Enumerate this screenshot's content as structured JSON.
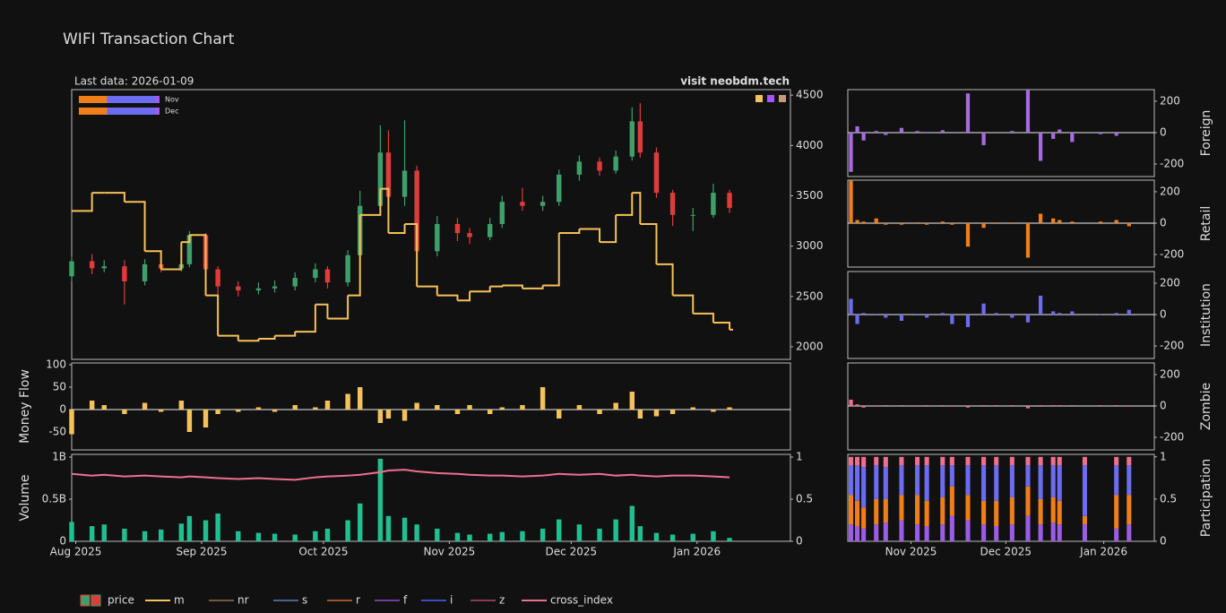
{
  "title": "WIFI Transaction Chart",
  "subtitle": "Last data: 2026-01-09",
  "annotation": "visit neobdm.tech",
  "legend": [
    {
      "name": "price"
    },
    {
      "name": "m",
      "color": "#f5c15a"
    },
    {
      "name": "nr",
      "color": "#6b5a40"
    },
    {
      "name": "s",
      "color": "#4a6090"
    },
    {
      "name": "r",
      "color": "#a0522d"
    },
    {
      "name": "f",
      "color": "#6a3fa0"
    },
    {
      "name": "i",
      "color": "#3b4cc0"
    },
    {
      "name": "z",
      "color": "#8a3a50"
    },
    {
      "name": "cross_index",
      "color": "#ef6f8f"
    }
  ],
  "chart_data": [
    {
      "type": "candlestick",
      "x": [
        "2025-07-31",
        "2025-08-05",
        "2025-08-08",
        "2025-08-13",
        "2025-08-18",
        "2025-08-22",
        "2025-08-27",
        "2025-08-29",
        "2025-09-02",
        "2025-09-05",
        "2025-09-10",
        "2025-09-15",
        "2025-09-19",
        "2025-09-24",
        "2025-09-29",
        "2025-10-02",
        "2025-10-07",
        "2025-10-10",
        "2025-10-15",
        "2025-10-17",
        "2025-10-21",
        "2025-10-24",
        "2025-10-29",
        "2025-11-03",
        "2025-11-06",
        "2025-11-11",
        "2025-11-14",
        "2025-11-19",
        "2025-11-24",
        "2025-11-28",
        "2025-12-03",
        "2025-12-08",
        "2025-12-12",
        "2025-12-16",
        "2025-12-18",
        "2025-12-22",
        "2025-12-26",
        "2025-12-31",
        "2026-01-05",
        "2026-01-09"
      ],
      "open": [
        2700,
        2850,
        2780,
        2800,
        2650,
        2820,
        2780,
        2820,
        3110,
        2770,
        2600,
        2560,
        2580,
        2600,
        2685,
        2770,
        2640,
        2910,
        3400,
        3930,
        3490,
        3750,
        2950,
        3220,
        3130,
        3090,
        3220,
        3440,
        3400,
        3440,
        3710,
        3840,
        3750,
        3890,
        4240,
        3930,
        3530,
        3310,
        3310,
        3530
      ],
      "high": [
        2900,
        2920,
        2860,
        2860,
        2870,
        2880,
        2880,
        3150,
        3130,
        2800,
        2650,
        2640,
        2660,
        2740,
        2830,
        2800,
        2960,
        3550,
        4200,
        4150,
        4250,
        3800,
        3300,
        3280,
        3180,
        3280,
        3500,
        3580,
        3500,
        3760,
        3900,
        3880,
        3950,
        4380,
        4420,
        3980,
        3560,
        3380,
        3620,
        3560
      ],
      "low": [
        2650,
        2720,
        2740,
        2420,
        2610,
        2740,
        2750,
        2790,
        2700,
        2520,
        2500,
        2520,
        2540,
        2560,
        2640,
        2580,
        2600,
        2880,
        3350,
        3300,
        3400,
        2880,
        2900,
        3050,
        3020,
        3060,
        3180,
        3350,
        3350,
        3400,
        3650,
        3700,
        3720,
        3850,
        3880,
        3480,
        3200,
        3150,
        3280,
        3330
      ],
      "close": [
        2850,
        2780,
        2800,
        2650,
        2820,
        2780,
        2820,
        3110,
        2770,
        2600,
        2560,
        2580,
        2600,
        2685,
        2770,
        2640,
        2910,
        3400,
        3930,
        3490,
        3750,
        2950,
        3220,
        3130,
        3090,
        3220,
        3440,
        3400,
        3440,
        3710,
        3840,
        3750,
        3890,
        4240,
        3930,
        3530,
        3310,
        3310,
        3530,
        3380
      ],
      "increasing_color": "#3f9f6a",
      "decreasing_color": "#e03b3b",
      "series": [
        {
          "color": "#f5c15a",
          "values": [
            3350,
            3530,
            3530,
            3440,
            2950,
            2770,
            3040,
            3110,
            2510,
            2110,
            2060,
            2080,
            2110,
            2150,
            2420,
            2280,
            2510,
            3310,
            3570,
            3130,
            3220,
            2600,
            2510,
            2460,
            2550,
            2600,
            2610,
            2580,
            2610,
            3130,
            3170,
            3040,
            3310,
            3530,
            3220,
            2820,
            2510,
            2330,
            2240,
            2170
          ]
        }
      ],
      "mini": {
        "categories": [
          "Nov",
          "Dec"
        ],
        "series": [
          {
            "color": "#f07f1a",
            "values": [
              0.35,
              0.35
            ]
          },
          {
            "color": "#6b6cf0",
            "values": [
              0.6,
              0.6
            ]
          },
          {
            "color": "#a855f7",
            "values": [
              0.05,
              0.05
            ]
          }
        ]
      },
      "xlim": [
        "2025-07-31",
        "2026-01-24"
      ],
      "ylim": [
        1875,
        4555
      ],
      "yticks": [
        2000,
        2500,
        3000,
        3500,
        4000,
        4500
      ]
    },
    {
      "type": "bar",
      "y_title": "Money Flow",
      "color": "#f5c15a",
      "x": [
        "2025-07-31",
        "2025-08-05",
        "2025-08-08",
        "2025-08-13",
        "2025-08-18",
        "2025-08-22",
        "2025-08-27",
        "2025-08-29",
        "2025-09-02",
        "2025-09-05",
        "2025-09-10",
        "2025-09-15",
        "2025-09-19",
        "2025-09-24",
        "2025-09-29",
        "2025-10-02",
        "2025-10-07",
        "2025-10-10",
        "2025-10-15",
        "2025-10-17",
        "2025-10-21",
        "2025-10-24",
        "2025-10-29",
        "2025-11-03",
        "2025-11-06",
        "2025-11-11",
        "2025-11-14",
        "2025-11-19",
        "2025-11-24",
        "2025-11-28",
        "2025-12-03",
        "2025-12-08",
        "2025-12-12",
        "2025-12-16",
        "2025-12-18",
        "2025-12-22",
        "2025-12-26",
        "2025-12-31",
        "2026-01-05",
        "2026-01-09"
      ],
      "values": [
        -55,
        20,
        10,
        -10,
        15,
        -5,
        20,
        -50,
        -40,
        -10,
        -5,
        5,
        -5,
        10,
        5,
        20,
        35,
        50,
        -30,
        -20,
        -25,
        15,
        10,
        -10,
        10,
        -10,
        5,
        10,
        50,
        -20,
        10,
        -10,
        15,
        40,
        -20,
        -15,
        -10,
        5,
        -5,
        5
      ],
      "xlim": [
        "2025-07-31",
        "2026-01-24"
      ],
      "ylim": [
        -90,
        104
      ],
      "yticks": [
        -50,
        0,
        50,
        100
      ]
    },
    {
      "type": "combo",
      "y_title": "Volume",
      "x": [
        "2025-07-31",
        "2025-08-05",
        "2025-08-08",
        "2025-08-13",
        "2025-08-18",
        "2025-08-22",
        "2025-08-27",
        "2025-08-29",
        "2025-09-02",
        "2025-09-05",
        "2025-09-10",
        "2025-09-15",
        "2025-09-19",
        "2025-09-24",
        "2025-09-29",
        "2025-10-02",
        "2025-10-07",
        "2025-10-10",
        "2025-10-15",
        "2025-10-17",
        "2025-10-21",
        "2025-10-24",
        "2025-10-29",
        "2025-11-03",
        "2025-11-06",
        "2025-11-11",
        "2025-11-14",
        "2025-11-19",
        "2025-11-24",
        "2025-11-28",
        "2025-12-03",
        "2025-12-08",
        "2025-12-12",
        "2025-12-16",
        "2025-12-18",
        "2025-12-22",
        "2025-12-26",
        "2025-12-31",
        "2026-01-05",
        "2026-01-09"
      ],
      "series": [
        {
          "color": "#1fbf8f",
          "values": [
            230000000,
            180000000,
            200000000,
            150000000,
            120000000,
            140000000,
            210000000,
            300000000,
            250000000,
            330000000,
            120000000,
            100000000,
            90000000,
            80000000,
            120000000,
            150000000,
            250000000,
            450000000,
            980000000,
            300000000,
            280000000,
            200000000,
            150000000,
            100000000,
            80000000,
            90000000,
            110000000,
            120000000,
            150000000,
            260000000,
            200000000,
            150000000,
            260000000,
            420000000,
            180000000,
            100000000,
            80000000,
            90000000,
            120000000,
            40000000
          ]
        },
        {
          "color": "#ef6f8f",
          "axis": "y2",
          "values": [
            0.8,
            0.78,
            0.79,
            0.77,
            0.78,
            0.77,
            0.76,
            0.77,
            0.76,
            0.75,
            0.74,
            0.75,
            0.74,
            0.73,
            0.76,
            0.77,
            0.78,
            0.79,
            0.82,
            0.84,
            0.85,
            0.83,
            0.81,
            0.8,
            0.79,
            0.78,
            0.78,
            0.77,
            0.78,
            0.8,
            0.79,
            0.8,
            0.78,
            0.79,
            0.78,
            0.77,
            0.78,
            0.78,
            0.77,
            0.76
          ]
        }
      ],
      "xlim": [
        "2025-07-31",
        "2026-01-24"
      ],
      "xticks": [
        {
          "value": "2025-08-01",
          "label": "Aug 2025"
        },
        {
          "value": "2025-09-01",
          "label": "Sep 2025"
        },
        {
          "value": "2025-10-01",
          "label": "Oct 2025"
        },
        {
          "value": "2025-11-01",
          "label": "Nov 2025"
        },
        {
          "value": "2025-12-01",
          "label": "Dec 2025"
        },
        {
          "value": "2026-01-01",
          "label": "Jan 2026"
        }
      ],
      "ylim": [
        0,
        1032000000
      ],
      "yticks": [
        0,
        {
          "value": 500000000,
          "label": "0.5B"
        },
        {
          "value": 1000000000,
          "label": "1B"
        }
      ],
      "y2lim": [
        0,
        1.032
      ],
      "y2ticks": [
        0,
        0.5,
        1
      ]
    },
    {
      "type": "bar",
      "y_title": "Foreign",
      "color": "#a66be0",
      "x": [
        "2025-10-13",
        "2025-10-15",
        "2025-10-17",
        "2025-10-21",
        "2025-10-24",
        "2025-10-29",
        "2025-11-03",
        "2025-11-06",
        "2025-11-11",
        "2025-11-14",
        "2025-11-19",
        "2025-11-24",
        "2025-11-28",
        "2025-12-03",
        "2025-12-08",
        "2025-12-12",
        "2025-12-16",
        "2025-12-18",
        "2025-12-22",
        "2025-12-26",
        "2025-12-31",
        "2026-01-05",
        "2026-01-09"
      ],
      "values": [
        -250,
        40,
        -50,
        10,
        -15,
        30,
        10,
        -5,
        15,
        5,
        250,
        -80,
        5,
        10,
        270,
        -180,
        -40,
        20,
        -60,
        0,
        -10,
        -20,
        0
      ],
      "xlim": [
        "2025-10-12",
        "2026-01-17"
      ],
      "ylim": [
        -280,
        274
      ],
      "yticks": [
        -200,
        0,
        200
      ]
    },
    {
      "type": "bar",
      "y_title": "Retail",
      "color": "#f07f1a",
      "x": [
        "2025-10-13",
        "2025-10-15",
        "2025-10-17",
        "2025-10-21",
        "2025-10-24",
        "2025-10-29",
        "2025-11-03",
        "2025-11-06",
        "2025-11-11",
        "2025-11-14",
        "2025-11-19",
        "2025-11-24",
        "2025-11-28",
        "2025-12-03",
        "2025-12-08",
        "2025-12-12",
        "2025-12-16",
        "2025-12-18",
        "2025-12-22",
        "2025-12-26",
        "2025-12-31",
        "2026-01-05",
        "2026-01-09"
      ],
      "values": [
        270,
        20,
        10,
        30,
        -10,
        -10,
        5,
        -10,
        10,
        -10,
        -150,
        -30,
        -5,
        -5,
        -220,
        60,
        30,
        20,
        10,
        0,
        10,
        20,
        -20
      ],
      "xlim": [
        "2025-10-12",
        "2026-01-17"
      ],
      "ylim": [
        -280,
        274
      ],
      "yticks": [
        -200,
        0,
        200
      ]
    },
    {
      "type": "bar",
      "y_title": "Institution",
      "color": "#6b6cf0",
      "x": [
        "2025-10-13",
        "2025-10-15",
        "2025-10-17",
        "2025-10-21",
        "2025-10-24",
        "2025-10-29",
        "2025-11-03",
        "2025-11-06",
        "2025-11-11",
        "2025-11-14",
        "2025-11-19",
        "2025-11-24",
        "2025-11-28",
        "2025-12-03",
        "2025-12-08",
        "2025-12-12",
        "2025-12-16",
        "2025-12-18",
        "2025-12-22",
        "2025-12-26",
        "2025-12-31",
        "2026-01-05",
        "2026-01-09"
      ],
      "values": [
        100,
        -60,
        10,
        5,
        -20,
        -40,
        5,
        -20,
        10,
        -60,
        -80,
        70,
        10,
        -20,
        -50,
        120,
        20,
        10,
        20,
        0,
        -5,
        10,
        30
      ],
      "xlim": [
        "2025-10-12",
        "2026-01-17"
      ],
      "ylim": [
        -280,
        274
      ],
      "yticks": [
        -200,
        0,
        200
      ]
    },
    {
      "type": "bar",
      "y_title": "Zombie",
      "color": "#ef6f8f",
      "x": [
        "2025-10-13",
        "2025-10-15",
        "2025-10-17",
        "2025-10-21",
        "2025-10-24",
        "2025-10-29",
        "2025-11-03",
        "2025-11-06",
        "2025-11-11",
        "2025-11-14",
        "2025-11-19",
        "2025-11-24",
        "2025-11-28",
        "2025-12-03",
        "2025-12-08",
        "2025-12-12",
        "2025-12-16",
        "2025-12-18",
        "2025-12-22",
        "2025-12-26",
        "2025-12-31",
        "2026-01-05",
        "2026-01-09"
      ],
      "values": [
        40,
        10,
        -10,
        -5,
        5,
        5,
        -5,
        5,
        5,
        -5,
        -10,
        5,
        5,
        5,
        -15,
        5,
        5,
        5,
        5,
        0,
        5,
        5,
        -5
      ],
      "xlim": [
        "2025-10-12",
        "2026-01-17"
      ],
      "ylim": [
        -280,
        274
      ],
      "yticks": [
        -200,
        0,
        200
      ]
    },
    {
      "type": "stacked_bar",
      "y_title": "Participation",
      "x": [
        "2025-10-13",
        "2025-10-15",
        "2025-10-17",
        "2025-10-21",
        "2025-10-24",
        "2025-10-29",
        "2025-11-03",
        "2025-11-06",
        "2025-11-11",
        "2025-11-14",
        "2025-11-19",
        "2025-11-24",
        "2025-11-28",
        "2025-12-03",
        "2025-12-08",
        "2025-12-12",
        "2025-12-16",
        "2025-12-18",
        "2025-12-22",
        "2025-12-26",
        "2025-12-31",
        "2026-01-05",
        "2026-01-09"
      ],
      "series": [
        {
          "color": "#9b5de5",
          "values": [
            0.2,
            0.18,
            0.15,
            0.2,
            0.22,
            0.25,
            0.2,
            0.18,
            0.2,
            0.3,
            0.25,
            0.2,
            0.18,
            0.2,
            0.3,
            0.2,
            0.22,
            0.2,
            null,
            0.2,
            null,
            0.15,
            0.2
          ]
        },
        {
          "color": "#f07f1a",
          "values": [
            0.35,
            0.3,
            0.25,
            0.3,
            0.28,
            0.3,
            0.35,
            0.3,
            0.32,
            0.35,
            0.3,
            0.28,
            0.3,
            0.32,
            0.35,
            0.3,
            0.3,
            0.28,
            null,
            0.1,
            null,
            0.4,
            0.35
          ]
        },
        {
          "color": "#6b6cf0",
          "values": [
            0.35,
            0.42,
            0.48,
            0.4,
            0.38,
            0.35,
            0.35,
            0.42,
            0.38,
            0.25,
            0.35,
            0.42,
            0.42,
            0.38,
            0.25,
            0.4,
            0.38,
            0.42,
            null,
            0.6,
            null,
            0.35,
            0.35
          ]
        },
        {
          "color": "#ef6f8f",
          "values": [
            0.1,
            0.1,
            0.12,
            0.1,
            0.12,
            0.1,
            0.1,
            0.1,
            0.1,
            0.1,
            0.1,
            0.1,
            0.1,
            0.1,
            0.1,
            0.1,
            0.1,
            0.1,
            null,
            0.1,
            null,
            0.1,
            0.1
          ]
        }
      ],
      "xlim": [
        "2025-10-12",
        "2026-01-17"
      ],
      "xticks": [
        {
          "value": "2025-11-01",
          "label": "Nov 2025"
        },
        {
          "value": "2025-12-01",
          "label": "Dec 2025"
        },
        {
          "value": "2026-01-01",
          "label": "Jan 2026"
        }
      ],
      "ylim": [
        0,
        1.03
      ],
      "yticks": [
        0,
        0.5,
        1
      ]
    }
  ]
}
